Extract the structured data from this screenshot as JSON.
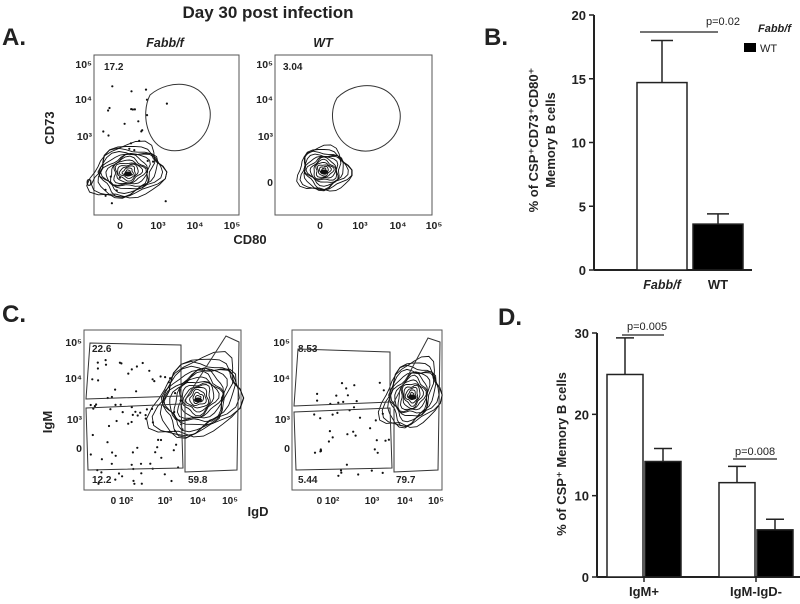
{
  "figure": {
    "title": "Day 30 post infection",
    "panel_letters": {
      "a": "A.",
      "b": "B.",
      "c": "C.",
      "d": "D."
    }
  },
  "flow_a": {
    "y_label": "CD73",
    "x_label": "CD80",
    "y_ticks": [
      "10⁵",
      "10⁴",
      "10³",
      "0"
    ],
    "x_ticks": [
      "0",
      "10³",
      "10⁴",
      "10⁵"
    ],
    "plots": [
      {
        "header": "Fabb/f",
        "gate_percent": "17.2"
      },
      {
        "header": "WT",
        "gate_percent": "3.04"
      }
    ]
  },
  "flow_c": {
    "y_label": "IgM",
    "x_label": "IgD",
    "y_ticks": [
      "10⁵",
      "10⁴",
      "10³",
      "0"
    ],
    "x_ticks": [
      "0 10²",
      "10³",
      "10⁴",
      "10⁵"
    ],
    "plots": [
      {
        "top_left": "22.6",
        "bottom_left": "12.2",
        "bottom_right": "59.8"
      },
      {
        "top_left": "8.53",
        "bottom_left": "5.44",
        "bottom_right": "79.7"
      }
    ]
  },
  "chart_data": [
    {
      "type": "bar",
      "panel": "B",
      "ylabel_line1": "% of CSP⁺CD73⁺CD80⁺",
      "ylabel_line2": "Memory B cells",
      "ylim": [
        0,
        20
      ],
      "yticks": [
        0,
        5,
        10,
        15,
        20
      ],
      "categories": [
        "Fabb/f",
        "WT"
      ],
      "values": [
        14.7,
        3.6
      ],
      "errors": [
        3.3,
        0.8
      ],
      "fills": [
        "#ffffff",
        "#000000"
      ],
      "legend": {
        "line1": "Fabb/f",
        "line2": "WT",
        "placement": "top-right"
      },
      "annotations": [
        {
          "text": "p=0.02",
          "between": [
            0,
            1
          ]
        }
      ]
    },
    {
      "type": "bar",
      "panel": "D",
      "ylabel": "% of CSP⁺ Memory  B cells",
      "ylim": [
        0,
        30
      ],
      "yticks": [
        0,
        10,
        20,
        30
      ],
      "categories": [
        "IgM+",
        "IgM-IgD-"
      ],
      "series": [
        {
          "values": [
            24.9,
            11.6
          ],
          "errors": [
            4.5,
            2.0
          ],
          "fill": "#ffffff"
        },
        {
          "values": [
            14.2,
            5.8
          ],
          "errors": [
            1.6,
            1.3
          ],
          "fill": "#000000"
        }
      ],
      "annotations": [
        {
          "text": "p=0.005",
          "category": 0
        },
        {
          "text": "p=0.008",
          "category": 1
        }
      ]
    }
  ]
}
